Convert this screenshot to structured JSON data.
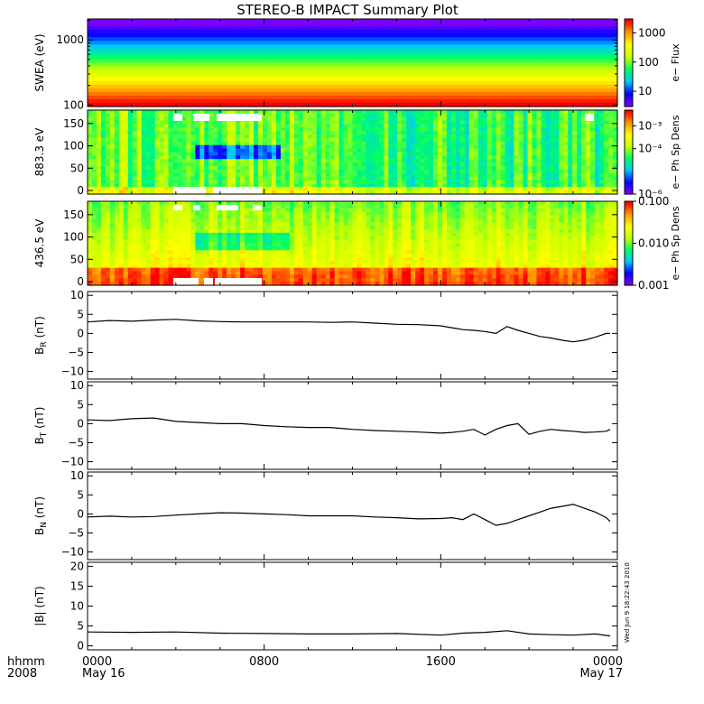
{
  "title": "STEREO-B IMPACT Summary Plot",
  "timestamp": "Wed Jun 9 18:22:43 2010",
  "time_axis": {
    "row1": [
      "0000",
      "0800",
      "1600",
      "0000"
    ],
    "row2": [
      "May 16",
      "",
      "",
      "May 17"
    ],
    "left_row1": "hhmm",
    "left_row2": "2008",
    "hours": [
      0,
      8,
      16,
      24
    ]
  },
  "colors": {
    "colormap": [
      "#7f00ff",
      "#0000ff",
      "#00c8ff",
      "#00ff64",
      "#c8ff00",
      "#ffff00",
      "#ff9600",
      "#ff0000"
    ],
    "line": "#000000",
    "gap": "#ffffff"
  },
  "chart_data": [
    {
      "type": "heatmap",
      "ylabel": "SWEA (eV)",
      "yscale": "log",
      "ylim": [
        95,
        2100
      ],
      "yticks": [
        "100",
        "1000"
      ],
      "ytick_values": [
        100,
        1000
      ],
      "colorbar_label": "e− Flux",
      "colorbar_scale": "log",
      "colorbar_range": [
        3,
        3000
      ],
      "colorbar_ticks": [
        "10",
        "100",
        "1000"
      ],
      "colorbar_tick_values": [
        10,
        100,
        1000
      ],
      "description_values": "flux decreases with energy; red below ~200 eV, green 300-900 eV, blue above ~1500 eV"
    },
    {
      "type": "heatmap",
      "ylabel": "883.3 eV",
      "ylim": [
        -8,
        180
      ],
      "yticks": [
        "0",
        "50",
        "100",
        "150"
      ],
      "ytick_values": [
        0,
        50,
        100,
        150
      ],
      "colorbar_label": "e− Ph Sp Dens",
      "colorbar_scale": "log",
      "colorbar_range": [
        1e-06,
        0.005
      ],
      "colorbar_ticks": [
        "10⁻⁶",
        "10⁻⁴",
        "10⁻³"
      ],
      "colorbar_tick_values": [
        1e-06,
        0.0001,
        0.001
      ]
    },
    {
      "type": "heatmap",
      "ylabel": "436.5 eV",
      "ylim": [
        -8,
        180
      ],
      "yticks": [
        "0",
        "50",
        "100",
        "150"
      ],
      "ytick_values": [
        0,
        50,
        100,
        150
      ],
      "colorbar_label": "e− Ph Sp Dens",
      "colorbar_scale": "log",
      "colorbar_range": [
        0.001,
        0.1
      ],
      "colorbar_ticks": [
        "0.001",
        "0.010",
        "0.100"
      ],
      "colorbar_tick_values": [
        0.001,
        0.01,
        0.1
      ]
    },
    {
      "type": "line",
      "ylabel": "B",
      "ylabel_sub": "R",
      "ylabel_unit": " (nT)",
      "ylim": [
        -12,
        11
      ],
      "yticks": [
        "−10",
        "−5",
        "0",
        "5",
        "10"
      ],
      "ytick_values": [
        -10,
        -5,
        0,
        5,
        10
      ],
      "x_hours": [
        0,
        1,
        2,
        3,
        4,
        5,
        6,
        7,
        8,
        9,
        10,
        11,
        12,
        13,
        14,
        15,
        16,
        16.5,
        17,
        17.5,
        18,
        18.5,
        19,
        19.5,
        20,
        20.5,
        21,
        21.5,
        22,
        22.5,
        23,
        23.5,
        24
      ],
      "values": [
        3.0,
        3.4,
        3.2,
        3.5,
        3.7,
        3.3,
        3.1,
        3.0,
        3.0,
        3.0,
        3.0,
        2.9,
        3.0,
        2.7,
        2.4,
        2.3,
        2.0,
        1.5,
        1.0,
        0.8,
        0.5,
        0.0,
        1.8,
        0.8,
        0.0,
        -0.8,
        -1.2,
        -1.8,
        -2.2,
        -1.8,
        -1.0,
        0.0,
        0.0
      ]
    },
    {
      "type": "line",
      "ylabel": "B",
      "ylabel_sub": "T",
      "ylabel_unit": " (nT)",
      "ylim": [
        -12,
        11
      ],
      "yticks": [
        "−10",
        "−5",
        "0",
        "5",
        "10"
      ],
      "ytick_values": [
        -10,
        -5,
        0,
        5,
        10
      ],
      "x_hours": [
        0,
        1,
        2,
        3,
        4,
        5,
        6,
        7,
        8,
        9,
        10,
        11,
        12,
        13,
        14,
        15,
        16,
        16.5,
        17,
        17.5,
        18,
        18.5,
        19,
        19.5,
        20,
        20.5,
        21,
        21.5,
        22,
        22.5,
        23,
        23.5,
        24
      ],
      "values": [
        1.0,
        0.8,
        1.3,
        1.5,
        0.6,
        0.3,
        0.0,
        0.0,
        -0.5,
        -0.8,
        -1.0,
        -1.0,
        -1.5,
        -1.8,
        -2.0,
        -2.2,
        -2.5,
        -2.3,
        -2.0,
        -1.5,
        -3.0,
        -1.5,
        -0.5,
        0.0,
        -2.8,
        -2.0,
        -1.5,
        -1.8,
        -2.0,
        -2.3,
        -2.2,
        -2.0,
        -1.5
      ]
    },
    {
      "type": "line",
      "ylabel": "B",
      "ylabel_sub": "N",
      "ylabel_unit": " (nT)",
      "ylim": [
        -12,
        11
      ],
      "yticks": [
        "−10",
        "−5",
        "0",
        "5",
        "10"
      ],
      "ytick_values": [
        -10,
        -5,
        0,
        5,
        10
      ],
      "x_hours": [
        0,
        1,
        2,
        3,
        4,
        5,
        6,
        7,
        8,
        9,
        10,
        11,
        12,
        13,
        14,
        15,
        16,
        16.5,
        17,
        17.5,
        18,
        18.5,
        19,
        19.5,
        20,
        20.5,
        21,
        21.5,
        22,
        22.5,
        23,
        23.5,
        24
      ],
      "values": [
        -0.8,
        -0.6,
        -0.8,
        -0.7,
        -0.3,
        0.0,
        0.3,
        0.2,
        0.0,
        -0.2,
        -0.5,
        -0.5,
        -0.5,
        -0.8,
        -1.0,
        -1.3,
        -1.2,
        -1.0,
        -1.5,
        0.0,
        -1.5,
        -3.0,
        -2.5,
        -1.5,
        -0.5,
        0.5,
        1.5,
        2.0,
        2.5,
        1.5,
        0.5,
        -1.0,
        -2.0
      ]
    },
    {
      "type": "line",
      "ylabel": "|B|",
      "ylabel_sub": "",
      "ylabel_unit": " (nT)",
      "ylim": [
        -1,
        21
      ],
      "yticks": [
        "0",
        "5",
        "10",
        "15",
        "20"
      ],
      "ytick_values": [
        0,
        5,
        10,
        15,
        20
      ],
      "x_hours": [
        0,
        2,
        4,
        6,
        8,
        10,
        12,
        14,
        16,
        17,
        18,
        19,
        20,
        21,
        22,
        23,
        24
      ],
      "values": [
        3.5,
        3.4,
        3.5,
        3.2,
        3.1,
        3.0,
        3.0,
        3.1,
        2.7,
        3.2,
        3.4,
        3.8,
        3.0,
        2.8,
        2.7,
        3.0,
        2.5
      ]
    }
  ]
}
